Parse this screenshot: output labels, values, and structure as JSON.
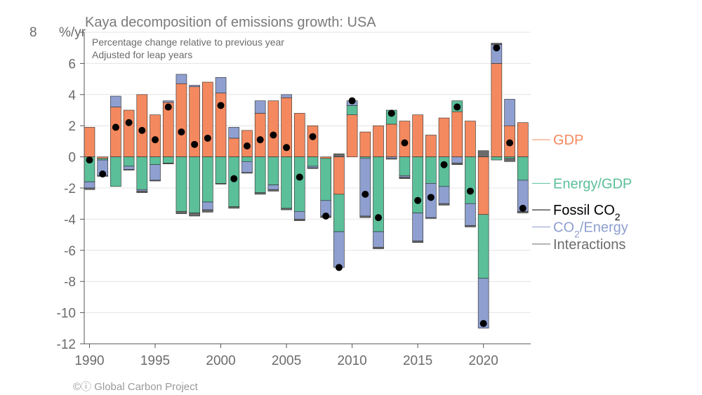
{
  "chart_data": {
    "type": "bar",
    "subtype": "stacked-bar-with-markers",
    "title": "Kaya decomposition of emissions growth: USA",
    "subtitle_lines": [
      "Percentage change relative to previous year",
      "Adjusted for leap years"
    ],
    "ylabel": "%/yr",
    "ylim": [
      -12,
      8
    ],
    "yticks": [
      -12,
      -10,
      -8,
      -6,
      -4,
      -2,
      0,
      2,
      4,
      6,
      8
    ],
    "xlim": [
      1989.6,
      2023.6
    ],
    "xticks": [
      1990,
      1995,
      2000,
      2005,
      2010,
      2015,
      2020
    ],
    "grid": true,
    "legend_position": "right",
    "colors": {
      "gdp": "#f4895f",
      "energy_gdp": "#5bbf99",
      "co2_energy": "#8e9fd0",
      "interactions": "#6b6b6b",
      "fossil_co2": "#000000",
      "grid": "#e4e4e4",
      "axis": "#555555"
    },
    "series_order": [
      "gdp",
      "energy_gdp",
      "co2_energy",
      "interactions"
    ],
    "legend": [
      {
        "key": "gdp",
        "label": "GDP",
        "y_value": 1.1
      },
      {
        "key": "energy_gdp",
        "label": "Energy/GDP",
        "y_value": -1.7
      },
      {
        "key": "fossil_co2",
        "label": "Fossil CO",
        "sub": "2",
        "suffix": "",
        "y_value": -3.4
      },
      {
        "key": "co2_energy",
        "label": "CO",
        "sub": "2",
        "suffix": "/Energy",
        "y_value": -4.5
      },
      {
        "key": "interactions",
        "label": "Interactions",
        "y_value": -5.6
      }
    ],
    "years": [
      1990,
      1991,
      1992,
      1993,
      1994,
      1995,
      1996,
      1997,
      1998,
      1999,
      2000,
      2001,
      2002,
      2003,
      2004,
      2005,
      2006,
      2007,
      2008,
      2009,
      2010,
      2011,
      2012,
      2013,
      2014,
      2015,
      2016,
      2017,
      2018,
      2019,
      2020,
      2021,
      2022,
      2023
    ],
    "gdp": [
      1.9,
      -0.1,
      3.2,
      3.0,
      4.0,
      2.7,
      3.5,
      4.7,
      4.5,
      4.8,
      4.1,
      1.2,
      1.7,
      2.8,
      3.6,
      3.8,
      2.8,
      2.0,
      -0.1,
      -2.4,
      2.7,
      1.6,
      2.0,
      2.1,
      2.3,
      2.7,
      1.4,
      2.5,
      2.9,
      2.3,
      -3.7,
      6.0,
      2.0,
      2.2
    ],
    "energy_gdp": [
      -1.6,
      -0.1,
      -1.9,
      -0.6,
      -2.1,
      -0.5,
      -0.4,
      -3.5,
      -3.6,
      -2.9,
      -1.7,
      -3.2,
      -0.3,
      -2.3,
      -1.8,
      -3.3,
      -3.5,
      -0.6,
      -2.7,
      -2.4,
      0.6,
      -0.1,
      -4.8,
      0.9,
      -1.2,
      -3.6,
      -1.7,
      -1.9,
      0.7,
      -3.0,
      -4.1,
      -0.2,
      -0.1,
      -1.5
    ],
    "co2_energy": [
      -0.4,
      -1.0,
      0.7,
      -0.2,
      -0.1,
      -1.0,
      0.1,
      0.6,
      0.1,
      -0.5,
      1.0,
      0.7,
      -0.7,
      0.8,
      -0.3,
      0.2,
      -0.5,
      -0.1,
      -1.0,
      -2.3,
      0.3,
      -3.7,
      -1.0,
      -0.1,
      -0.1,
      -1.8,
      -2.2,
      -1.1,
      -0.4,
      -1.4,
      -3.2,
      1.2,
      1.7,
      -2.0
    ],
    "interactions": [
      -0.1,
      -0.05,
      0.0,
      -0.05,
      -0.1,
      -0.05,
      -0.05,
      -0.15,
      -0.2,
      -0.15,
      -0.05,
      -0.1,
      -0.05,
      -0.1,
      -0.1,
      -0.1,
      -0.1,
      -0.05,
      -0.1,
      0.2,
      0.0,
      -0.1,
      -0.1,
      -0.05,
      -0.1,
      -0.1,
      -0.05,
      -0.1,
      -0.1,
      -0.1,
      0.4,
      0.1,
      -0.2,
      -0.1
    ],
    "fossil_co2": [
      -0.2,
      -1.1,
      1.9,
      2.2,
      1.7,
      1.1,
      3.2,
      1.6,
      0.8,
      1.2,
      3.3,
      -1.4,
      0.7,
      1.1,
      1.4,
      0.6,
      -1.3,
      1.3,
      -3.8,
      -7.1,
      3.6,
      -2.4,
      -3.9,
      2.8,
      0.9,
      -2.8,
      -2.6,
      -0.5,
      3.2,
      -2.2,
      -10.7,
      7.0,
      0.9,
      -3.3
    ],
    "credit": "©ⓘ Global Carbon Project"
  }
}
